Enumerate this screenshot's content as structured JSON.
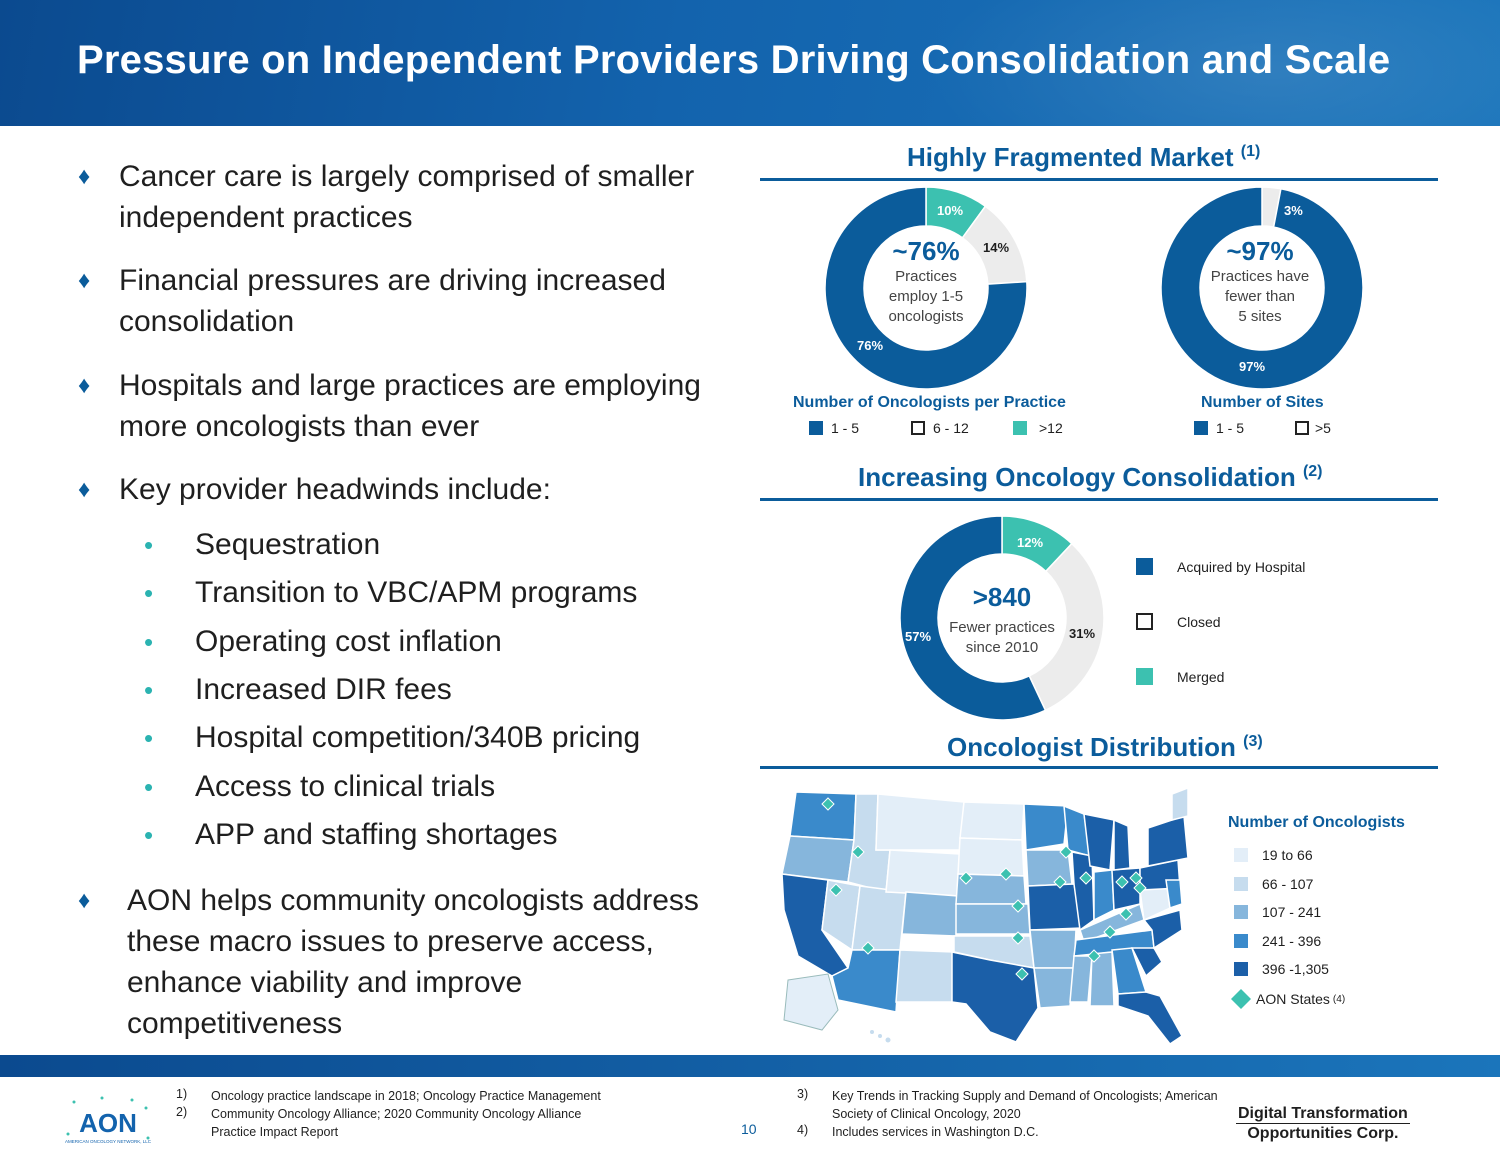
{
  "title": "Pressure on Independent Providers Driving Consolidation and Scale",
  "bullets": [
    {
      "line1": "Cancer care is largely comprised of smaller",
      "line2": "independent practices"
    },
    {
      "line1": "Financial pressures are driving increased",
      "line2": "consolidation"
    },
    {
      "line1": "Hospitals and large practices are employing",
      "line2": "more oncologists than ever"
    },
    {
      "line1": "Key provider headwinds include:"
    }
  ],
  "headwinds": [
    "Sequestration",
    "Transition to VBC/APM programs",
    "Operating cost inflation",
    "Increased DIR fees",
    "Hospital competition/340B pricing",
    "Access to clinical trials",
    "APP and staffing shortages"
  ],
  "aon_bullet": [
    "AON helps community oncologists address",
    "these macro issues to preserve access,",
    "enhance viability and improve",
    "competitiveness"
  ],
  "fragmented": {
    "title": "Highly Fragmented Market",
    "ref": "(1)",
    "donut1": {
      "big": "~76%",
      "small": [
        "Practices",
        "employ 1-5",
        "oncologists"
      ],
      "caption": "Number of Oncologists per Practice",
      "legend": [
        "1 - 5",
        "6 - 12",
        ">12"
      ],
      "labels": [
        "76%",
        "14%",
        "10%"
      ]
    },
    "donut2": {
      "big": "~97%",
      "small": [
        "Practices have",
        "fewer than",
        "5 sites"
      ],
      "caption": "Number of Sites",
      "legend": [
        "1 - 5",
        ">5"
      ],
      "labels": [
        "97%",
        "3%"
      ]
    }
  },
  "consolidation": {
    "title": "Increasing Oncology Consolidation",
    "ref": "(2)",
    "big": ">840",
    "small": [
      "Fewer practices",
      "since 2010"
    ],
    "labels": [
      "57%",
      "31%",
      "12%"
    ],
    "legend": [
      "Acquired by Hospital",
      "Closed",
      "Merged"
    ]
  },
  "distribution": {
    "title": "Oncologist Distribution",
    "ref": "(3)",
    "legend_title": "Number of Oncologists",
    "legend": [
      "19 to 66",
      "66 - 107",
      "107 - 241",
      "241 - 396",
      "396 -1,305"
    ],
    "aon": "AON States",
    "aon_ref": "(4)"
  },
  "chart_data": [
    {
      "type": "pie",
      "title": "Number of Oncologists per Practice",
      "categories": [
        "1 - 5",
        "6 - 12",
        ">12"
      ],
      "values": [
        76,
        14,
        10
      ]
    },
    {
      "type": "pie",
      "title": "Number of Sites",
      "categories": [
        "1 - 5",
        ">5"
      ],
      "values": [
        97,
        3
      ]
    },
    {
      "type": "pie",
      "title": "Increasing Oncology Consolidation",
      "categories": [
        "Acquired by Hospital",
        "Closed",
        "Merged"
      ],
      "values": [
        57,
        31,
        12
      ]
    }
  ],
  "colors": {
    "dark": "#0b5c9b",
    "light": "#ececec",
    "teal": "#3cc1b0"
  },
  "footer": {
    "notes_left": [
      {
        "num": "1)",
        "text": "Oncology practice landscape in 2018; Oncology Practice Management"
      },
      {
        "num": "2)",
        "text": "Community Oncology Alliance; 2020 Community Oncology Alliance"
      },
      {
        "num": "",
        "text": "Practice Impact Report"
      }
    ],
    "notes_right": [
      {
        "num": "3)",
        "text": "Key Trends in Tracking Supply and Demand of Oncologists; American"
      },
      {
        "num": "",
        "text": "Society of Clinical Oncology, 2020"
      },
      {
        "num": "4)",
        "text": "Includes services in Washington D.C."
      }
    ],
    "page": "10",
    "company_line1": "Digital Transformation",
    "company_line2": "Opportunities Corp.",
    "logo_text": "AON",
    "logo_sub": "AMERICAN ONCOLOGY NETWORK, LLC"
  }
}
